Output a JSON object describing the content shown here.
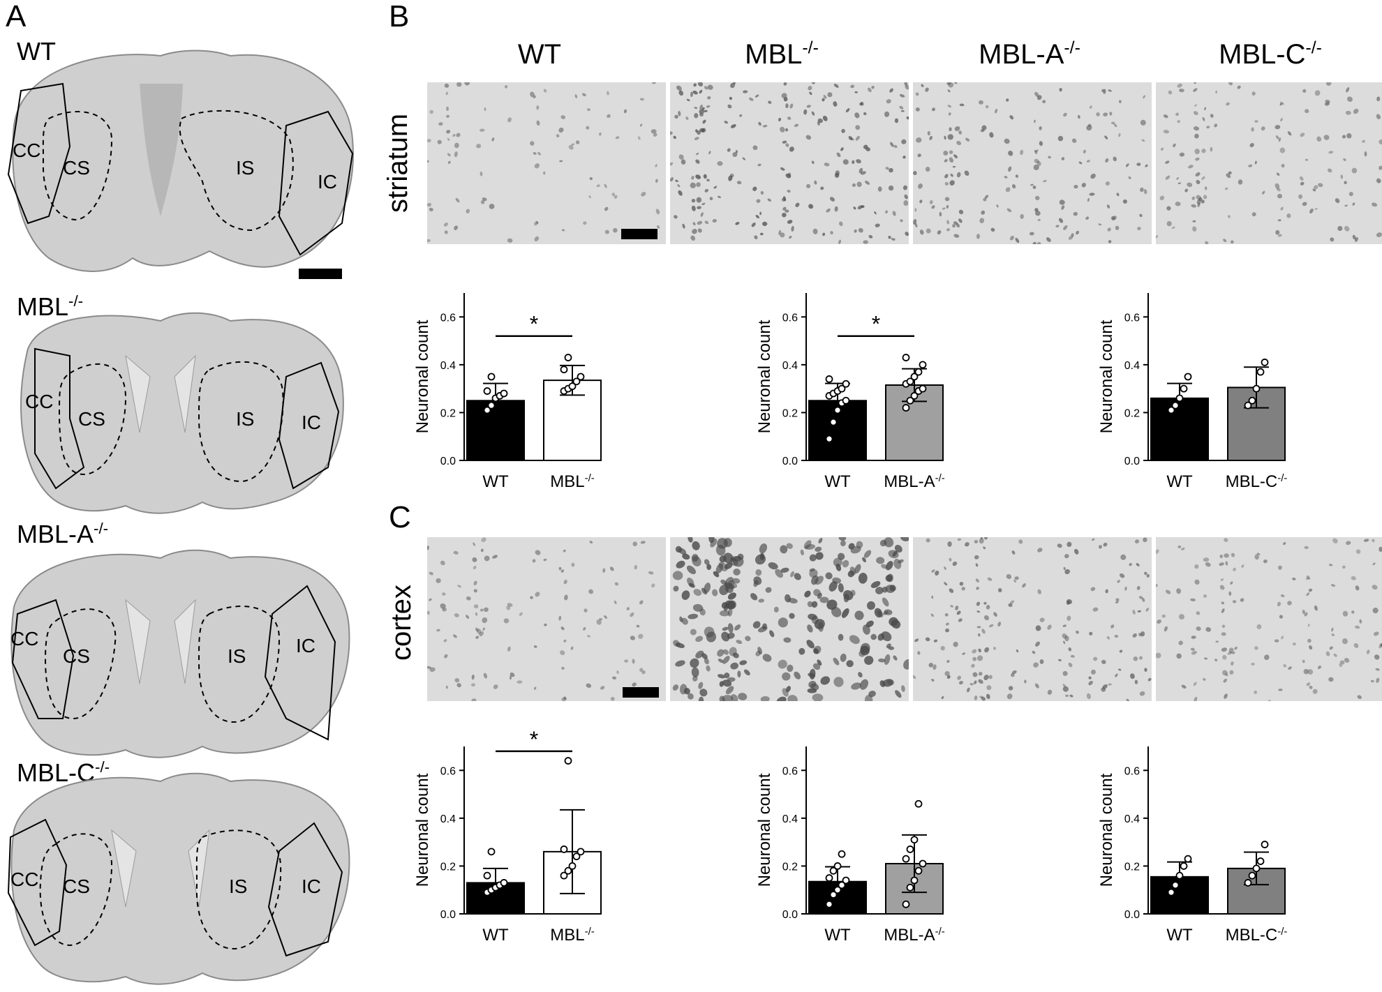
{
  "panels": {
    "A": "A",
    "B": "B",
    "C": "C"
  },
  "panel_a": {
    "sections": [
      {
        "genotype": "WT",
        "sup": "",
        "labels": [
          "CC",
          "CS",
          "IS",
          "IC"
        ]
      },
      {
        "genotype": "MBL",
        "sup": "-/-",
        "labels": [
          "CC",
          "CS",
          "IS",
          "IC"
        ]
      },
      {
        "genotype": "MBL-A",
        "sup": "-/-",
        "labels": [
          "CC",
          "CS",
          "IS",
          "IC"
        ]
      },
      {
        "genotype": "MBL-C",
        "sup": "-/-",
        "labels": [
          "CC",
          "CS",
          "IS",
          "IC"
        ]
      }
    ]
  },
  "micrograph_columns": [
    {
      "base": "WT",
      "sup": ""
    },
    {
      "base": "MBL",
      "sup": "-/-"
    },
    {
      "base": "MBL-A",
      "sup": "-/-"
    },
    {
      "base": "MBL-C",
      "sup": "-/-"
    }
  ],
  "regions": {
    "striatum": "striatum",
    "cortex": "cortex"
  },
  "colors": {
    "wt_bar": "#000000",
    "mbl_bar": "#ffffff",
    "mbl_a_bar": "#a0a0a0",
    "mbl_c_bar": "#808080",
    "tissue": "#dcdcdc",
    "nucleus": "#4a4a4a"
  },
  "chart_data": [
    {
      "type": "bar",
      "panel": "B",
      "region": "striatum",
      "ylabel": "Neuronal count",
      "ylim": [
        0,
        0.7
      ],
      "yticks": [
        "0.0",
        "0.2",
        "0.4",
        "0.6"
      ],
      "categories": [
        {
          "base": "WT",
          "sup": ""
        },
        {
          "base": "MBL",
          "sup": "-/-"
        }
      ],
      "values": [
        0.25,
        0.335
      ],
      "errors": [
        0.072,
        0.062
      ],
      "points": [
        [
          0.21,
          0.23,
          0.26,
          0.27,
          0.28,
          0.29,
          0.35
        ],
        [
          0.29,
          0.3,
          0.31,
          0.33,
          0.35,
          0.38,
          0.43
        ]
      ],
      "significance": "*"
    },
    {
      "type": "bar",
      "panel": "B",
      "region": "striatum",
      "ylabel": "Neuronal count",
      "ylim": [
        0,
        0.7
      ],
      "yticks": [
        "0.0",
        "0.2",
        "0.4",
        "0.6"
      ],
      "categories": [
        {
          "base": "WT",
          "sup": ""
        },
        {
          "base": "MBL-A",
          "sup": "-/-"
        }
      ],
      "values": [
        0.25,
        0.315
      ],
      "errors": [
        0.072,
        0.068
      ],
      "points": [
        [
          0.09,
          0.16,
          0.21,
          0.24,
          0.25,
          0.27,
          0.28,
          0.29,
          0.3,
          0.32,
          0.34
        ],
        [
          0.22,
          0.25,
          0.27,
          0.29,
          0.3,
          0.32,
          0.33,
          0.35,
          0.37,
          0.4,
          0.43
        ]
      ],
      "significance": "*"
    },
    {
      "type": "bar",
      "panel": "B",
      "region": "striatum",
      "ylabel": "Neuronal count",
      "ylim": [
        0,
        0.7
      ],
      "yticks": [
        "0.0",
        "0.2",
        "0.4",
        "0.6"
      ],
      "categories": [
        {
          "base": "WT",
          "sup": ""
        },
        {
          "base": "MBL-C",
          "sup": "-/-"
        }
      ],
      "values": [
        0.26,
        0.305
      ],
      "errors": [
        0.062,
        0.085
      ],
      "points": [
        [
          0.21,
          0.23,
          0.26,
          0.3,
          0.35
        ],
        [
          0.23,
          0.25,
          0.3,
          0.37,
          0.41
        ]
      ],
      "significance": ""
    },
    {
      "type": "bar",
      "panel": "C",
      "region": "cortex",
      "ylabel": "Neuronal count",
      "ylim": [
        0,
        0.7
      ],
      "yticks": [
        "0.0",
        "0.2",
        "0.4",
        "0.6"
      ],
      "categories": [
        {
          "base": "WT",
          "sup": ""
        },
        {
          "base": "MBL",
          "sup": "-/-"
        }
      ],
      "values": [
        0.13,
        0.26
      ],
      "errors": [
        0.06,
        0.175
      ],
      "points": [
        [
          0.09,
          0.1,
          0.11,
          0.12,
          0.13,
          0.16,
          0.26
        ],
        [
          0.16,
          0.18,
          0.2,
          0.24,
          0.26,
          0.27,
          0.64
        ]
      ],
      "significance": "*"
    },
    {
      "type": "bar",
      "panel": "C",
      "region": "cortex",
      "ylabel": "Neuronal count",
      "ylim": [
        0,
        0.7
      ],
      "yticks": [
        "0.0",
        "0.2",
        "0.4",
        "0.6"
      ],
      "categories": [
        {
          "base": "WT",
          "sup": ""
        },
        {
          "base": "MBL-A",
          "sup": "-/-"
        }
      ],
      "values": [
        0.135,
        0.21
      ],
      "errors": [
        0.062,
        0.12
      ],
      "points": [
        [
          0.04,
          0.08,
          0.1,
          0.12,
          0.14,
          0.15,
          0.18,
          0.2,
          0.25
        ],
        [
          0.04,
          0.11,
          0.14,
          0.18,
          0.21,
          0.23,
          0.27,
          0.31,
          0.46
        ]
      ],
      "significance": ""
    },
    {
      "type": "bar",
      "panel": "C",
      "region": "cortex",
      "ylabel": "Neuronal count",
      "ylim": [
        0,
        0.7
      ],
      "yticks": [
        "0.0",
        "0.2",
        "0.4",
        "0.6"
      ],
      "categories": [
        {
          "base": "WT",
          "sup": ""
        },
        {
          "base": "MBL-C",
          "sup": "-/-"
        }
      ],
      "values": [
        0.155,
        0.19
      ],
      "errors": [
        0.062,
        0.068
      ],
      "points": [
        [
          0.09,
          0.12,
          0.16,
          0.2,
          0.23
        ],
        [
          0.13,
          0.16,
          0.19,
          0.22,
          0.29
        ]
      ],
      "significance": ""
    }
  ]
}
